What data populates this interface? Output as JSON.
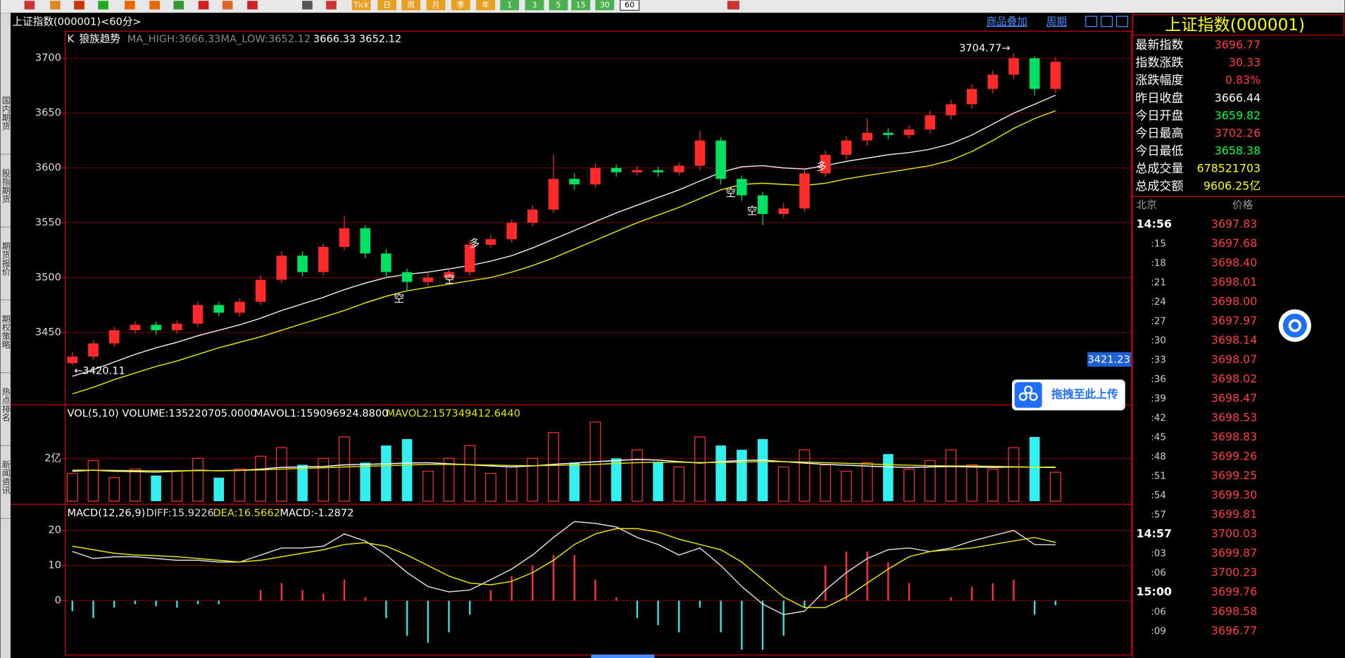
{
  "toolbar": {
    "items": [
      "Tick",
      "日",
      "周",
      "月",
      "季",
      "年",
      "1",
      "3",
      "5",
      "15",
      "30",
      "60"
    ]
  },
  "sidebar": {
    "tabs": [
      "国内期货",
      "股指期货",
      "期货报价",
      "期权策略",
      "热点排名",
      "新闻资讯"
    ]
  },
  "header": {
    "title": "上证指数(000001)<60分>",
    "links": [
      "商品叠加",
      "周期"
    ]
  },
  "upload": {
    "label": "拖拽至此上传"
  },
  "chart_data": [
    {
      "type": "candlestick",
      "indicator": "K",
      "study": "狼族趋势",
      "readout": "3666.33 3652.12",
      "up_color": "#ff2a2a",
      "down_color": "#00e060",
      "ylim": [
        3384.4,
        3723.4
      ],
      "yticks": [
        3450,
        3500,
        3550,
        3600,
        3650,
        3700
      ],
      "grid": true,
      "high_label": "3704.77→",
      "low_label": "←3420.11",
      "cursor_label": "3421.23",
      "signals": [
        "空",
        "空",
        "多",
        "空",
        "空",
        "多"
      ],
      "open": [
        3422,
        3428,
        3440,
        3452,
        3457,
        3452,
        3458,
        3475,
        3468,
        3478,
        3498,
        3520,
        3505,
        3528,
        3545,
        3522,
        3505,
        3496,
        3500,
        3505,
        3530,
        3535,
        3550,
        3562,
        3590,
        3585,
        3600,
        3596,
        3598,
        3596,
        3602,
        3625,
        3590,
        3575,
        3558,
        3563,
        3595,
        3612,
        3625,
        3632,
        3630,
        3635,
        3648,
        3658,
        3672,
        3685,
        3700,
        3672
      ],
      "high": [
        3432,
        3443,
        3455,
        3460,
        3460,
        3461,
        3478,
        3478,
        3481,
        3502,
        3524,
        3524,
        3531,
        3556,
        3548,
        3526,
        3508,
        3504,
        3508,
        3534,
        3539,
        3553,
        3566,
        3612,
        3595,
        3604,
        3603,
        3602,
        3601,
        3605,
        3634,
        3628,
        3593,
        3578,
        3568,
        3598,
        3616,
        3629,
        3645,
        3636,
        3639,
        3652,
        3662,
        3676,
        3689,
        3704.77,
        3702,
        3701
      ],
      "low": [
        3420.11,
        3425,
        3437,
        3449,
        3448,
        3449,
        3455,
        3465,
        3465,
        3475,
        3495,
        3501,
        3502,
        3525,
        3518,
        3500,
        3488,
        3492,
        3497,
        3502,
        3527,
        3532,
        3547,
        3559,
        3580,
        3582,
        3592,
        3593,
        3592,
        3593,
        3598,
        3585,
        3570,
        3548,
        3555,
        3560,
        3592,
        3608,
        3620,
        3626,
        3627,
        3631,
        3644,
        3654,
        3668,
        3681,
        3666,
        3668
      ],
      "close": [
        3428,
        3440,
        3452,
        3457,
        3452,
        3458,
        3475,
        3468,
        3478,
        3498,
        3520,
        3505,
        3528,
        3545,
        3522,
        3505,
        3496,
        3500,
        3505,
        3530,
        3535,
        3550,
        3562,
        3590,
        3585,
        3600,
        3596,
        3598,
        3596,
        3602,
        3625,
        3590,
        3575,
        3558,
        3563,
        3595,
        3612,
        3625,
        3632,
        3630,
        3635,
        3648,
        3658,
        3672,
        3685,
        3700,
        3672,
        3696.77
      ],
      "series": [
        {
          "name": "MA_HIGH:3666.33",
          "color": "#e8e8e8",
          "values": [
            3410,
            3416,
            3423,
            3430,
            3436,
            3441,
            3447,
            3452,
            3457,
            3463,
            3470,
            3476,
            3482,
            3489,
            3495,
            3500,
            3503,
            3505,
            3508,
            3511,
            3515,
            3520,
            3527,
            3535,
            3543,
            3551,
            3559,
            3566,
            3573,
            3580,
            3588,
            3596,
            3601,
            3602,
            3600,
            3599,
            3602,
            3606,
            3609,
            3612,
            3614,
            3617,
            3622,
            3630,
            3640,
            3650,
            3658,
            3666.33
          ]
        },
        {
          "name": "MA_LOW:3652.12",
          "color": "#e6e600",
          "values": [
            3394,
            3400,
            3407,
            3413,
            3419,
            3424,
            3430,
            3436,
            3441,
            3446,
            3452,
            3458,
            3464,
            3470,
            3477,
            3483,
            3488,
            3491,
            3494,
            3497,
            3500,
            3505,
            3511,
            3518,
            3526,
            3534,
            3542,
            3550,
            3557,
            3564,
            3572,
            3580,
            3585,
            3586,
            3585,
            3584,
            3586,
            3590,
            3593,
            3596,
            3599,
            3602,
            3607,
            3615,
            3625,
            3636,
            3645,
            3652.12
          ]
        }
      ]
    },
    {
      "type": "bar",
      "indicator": "VOL(5,10)",
      "up_color": "#ff3030",
      "down_color": "#33f0f0",
      "ylim": [
        0,
        432000000
      ],
      "yticks": [
        {
          "value": 200000000,
          "label": "2亿"
        }
      ],
      "grid": true,
      "series": [
        {
          "name": "VOLUME:135220705.0000",
          "color": "#ffffff",
          "values": [
            130000000.0,
            190000000.0,
            110000000.0,
            150000000.0,
            120000000.0,
            140000000.0,
            200000000.0,
            110000000.0,
            150000000.0,
            210000000.0,
            250000000.0,
            170000000.0,
            200000000.0,
            300000000.0,
            180000000.0,
            260000000.0,
            290000000.0,
            140000000.0,
            200000000.0,
            260000000.0,
            130000000.0,
            160000000.0,
            200000000.0,
            320000000.0,
            180000000.0,
            370000000.0,
            200000000.0,
            240000000.0,
            180000000.0,
            160000000.0,
            300000000.0,
            260000000.0,
            240000000.0,
            290000000.0,
            160000000.0,
            240000000.0,
            170000000.0,
            140000000.0,
            180000000.0,
            220000000.0,
            150000000.0,
            190000000.0,
            240000000.0,
            170000000.0,
            150000000.0,
            250000000.0,
            300000000.0,
            135220705
          ]
        },
        {
          "name": "MAVOL1:159096924.8800",
          "color": "#ffffff",
          "values": [
            140000000.0,
            145000000.0,
            140000000.0,
            138000000.0,
            136000000.0,
            140000000.0,
            145000000.0,
            142000000.0,
            144000000.0,
            150000000.0,
            158000000.0,
            160000000.0,
            162000000.0,
            170000000.0,
            172000000.0,
            175000000.0,
            178000000.0,
            180000000.0,
            175000000.0,
            170000000.0,
            165000000.0,
            160000000.0,
            165000000.0,
            172000000.0,
            178000000.0,
            185000000.0,
            190000000.0,
            195000000.0,
            192000000.0,
            185000000.0,
            178000000.0,
            185000000.0,
            190000000.0,
            192000000.0,
            185000000.0,
            178000000.0,
            172000000.0,
            168000000.0,
            164000000.0,
            160000000.0,
            158000000.0,
            160000000.0,
            162000000.0,
            160000000.0,
            158000000.0,
            160000000.0,
            159000000.0,
            159096924.88
          ]
        },
        {
          "name": "MAVOL2:157349412.6440",
          "color": "#e6e600",
          "values": [
            145000000.0,
            145000000.0,
            144000000.0,
            143000000.0,
            142000000.0,
            142000000.0,
            143000000.0,
            143000000.0,
            144000000.0,
            146000000.0,
            150000000.0,
            153000000.0,
            156000000.0,
            160000000.0,
            163000000.0,
            166000000.0,
            169000000.0,
            172000000.0,
            172000000.0,
            171000000.0,
            169000000.0,
            167000000.0,
            166000000.0,
            167000000.0,
            169000000.0,
            172000000.0,
            176000000.0,
            180000000.0,
            182000000.0,
            182000000.0,
            181000000.0,
            181000000.0,
            183000000.0,
            185000000.0,
            185000000.0,
            183000000.0,
            180000000.0,
            177000000.0,
            174000000.0,
            171000000.0,
            168000000.0,
            166000000.0,
            165000000.0,
            164000000.0,
            163000000.0,
            161000000.0,
            159000000.0,
            157349412.644
          ]
        }
      ]
    },
    {
      "type": "macd",
      "indicator": "MACD(12,26,9)",
      "up_color": "#ff3030",
      "down_color": "#33e0e0",
      "ylim": [
        -15.6,
        26.6
      ],
      "yticks": [
        0,
        10,
        20
      ],
      "grid": true,
      "series": [
        {
          "name": "DIFF:15.9226",
          "color": "#dddddd",
          "values": [
            14,
            12,
            12.5,
            12.5,
            12,
            11.5,
            11.5,
            11,
            11,
            13,
            15,
            15,
            15.5,
            19,
            17,
            13,
            8,
            4,
            2.5,
            3,
            6,
            9,
            13,
            18,
            22.5,
            22,
            21,
            18,
            16,
            13,
            15,
            10,
            4,
            -1,
            -4,
            -3,
            3,
            8,
            12,
            14.5,
            15,
            14,
            15,
            17,
            18.5,
            20,
            16,
            15.9226
          ]
        },
        {
          "name": "DEA:16.5662",
          "color": "#e6e600",
          "values": [
            15.5,
            14.5,
            13.5,
            13,
            12.8,
            12.5,
            12,
            11.5,
            11,
            11.5,
            12.5,
            13.5,
            14.5,
            16,
            16.5,
            15.5,
            13,
            10,
            7,
            5,
            4.5,
            5.5,
            8,
            11.5,
            16,
            19,
            20.5,
            20.5,
            19.5,
            17.5,
            16,
            14.5,
            11,
            6,
            1,
            -2,
            -2,
            1,
            5,
            9,
            12.5,
            14,
            14.5,
            15,
            16,
            17,
            18,
            16.5662
          ]
        },
        {
          "name": "MACD:-1.2872",
          "color": "#ffffff",
          "values": [
            -3,
            -5,
            -2,
            -1,
            -1.6,
            -2,
            -1,
            -1,
            0,
            3,
            5,
            3,
            2,
            6,
            1,
            -5,
            -10,
            -12,
            -9,
            -4,
            3,
            7,
            10,
            13,
            13,
            6,
            1,
            -5,
            -7,
            -9,
            -2,
            -9,
            -14,
            -14,
            -10,
            -2,
            10,
            14,
            14,
            11,
            5,
            0,
            1,
            4,
            5,
            6,
            -4,
            -1.2872
          ]
        }
      ]
    }
  ],
  "quote_panel": {
    "title": "上证指数(000001)",
    "rows": [
      {
        "label": "最新指数",
        "value": "3696.77",
        "color": "#ff3c3c"
      },
      {
        "label": "指数涨跌",
        "value": "30.33",
        "color": "#ff3c3c"
      },
      {
        "label": "涨跌幅度",
        "value": "0.83%",
        "color": "#ff3c3c"
      },
      {
        "label": "昨日收盘",
        "value": "3666.44",
        "color": "#ffffff"
      },
      {
        "label": "今日开盘",
        "value": "3659.82",
        "color": "#00ff40"
      },
      {
        "label": "今日最高",
        "value": "3702.26",
        "color": "#ff3c3c"
      },
      {
        "label": "今日最低",
        "value": "3658.38",
        "color": "#00ff40"
      },
      {
        "label": "总成交量",
        "value": "678521703",
        "color": "#ffff00"
      },
      {
        "label": "总成交额",
        "value": "9606.25亿",
        "color": "#ffff00"
      }
    ]
  },
  "time_sales": {
    "headers": [
      "北京",
      "价格"
    ],
    "rows": [
      [
        "14:56",
        "3697.83"
      ],
      [
        ":15",
        "3697.68"
      ],
      [
        ":18",
        "3698.40"
      ],
      [
        ":21",
        "3698.01"
      ],
      [
        ":24",
        "3698.00"
      ],
      [
        ":27",
        "3697.97"
      ],
      [
        ":30",
        "3698.14"
      ],
      [
        ":33",
        "3698.07"
      ],
      [
        ":36",
        "3698.02"
      ],
      [
        ":39",
        "3698.47"
      ],
      [
        ":42",
        "3698.53"
      ],
      [
        ":45",
        "3698.83"
      ],
      [
        ":48",
        "3699.26"
      ],
      [
        ":51",
        "3699.25"
      ],
      [
        ":54",
        "3699.30"
      ],
      [
        ":57",
        "3699.81"
      ],
      [
        "14:57",
        "3700.03"
      ],
      [
        ":03",
        "3699.87"
      ],
      [
        ":06",
        "3700.23"
      ],
      [
        "15:00",
        "3699.76"
      ],
      [
        ":06",
        "3698.58"
      ],
      [
        ":09",
        "3696.77"
      ]
    ]
  }
}
